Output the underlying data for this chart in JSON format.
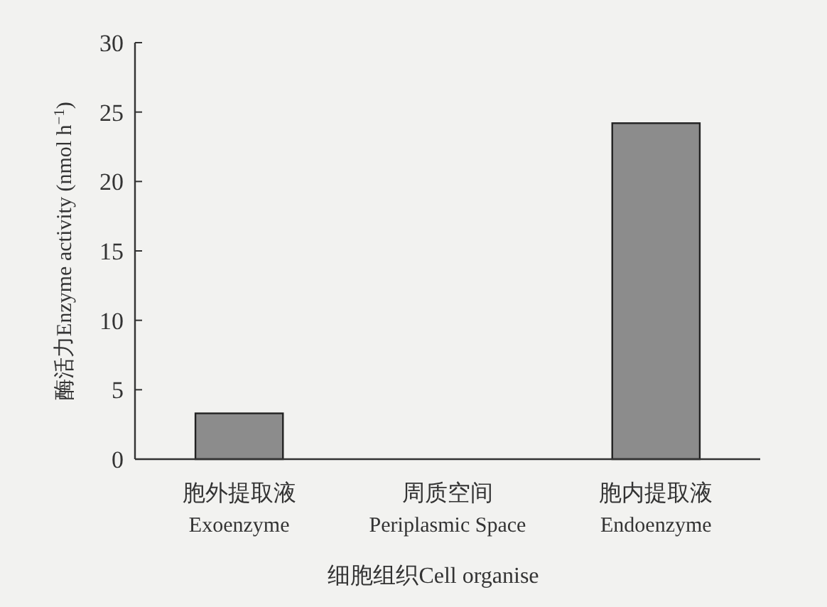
{
  "chart_data": {
    "type": "bar",
    "categories": [
      "胞外提取液\nExoenzyme",
      "周质空间\nPeriplasmic Space",
      "胞内提取液\nEndoenzyme"
    ],
    "values": [
      3.3,
      0,
      24.2
    ],
    "color": "#8c8c8c",
    "ylim": [
      0,
      30
    ],
    "yticks": [
      0,
      5,
      10,
      15,
      20,
      25,
      30
    ],
    "xlabel": "细胞组织Cell organise",
    "ylabel": "酶活力Enzyme activity (nmol h$^{−1}$)",
    "grid": false
  }
}
